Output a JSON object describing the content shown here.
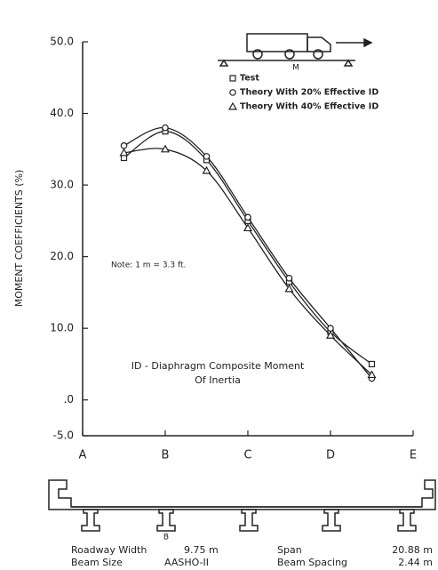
{
  "chart_data": {
    "type": "line",
    "y_label": "MOMENT COEFFICIENTS (%)",
    "x": [
      0.5,
      1,
      1.5,
      2,
      2.5,
      3,
      3.5
    ],
    "xlim": [
      0,
      4
    ],
    "xticks": [
      {
        "value": 0,
        "label": "A"
      },
      {
        "value": 1,
        "label": "B"
      },
      {
        "value": 2,
        "label": "C"
      },
      {
        "value": 3,
        "label": "D"
      },
      {
        "value": 4,
        "label": "E"
      }
    ],
    "ylim": [
      -5,
      50
    ],
    "yticks": [
      {
        "value": 50,
        "label": "50.0"
      },
      {
        "value": 40,
        "label": "40.0"
      },
      {
        "value": 30,
        "label": "30.0"
      },
      {
        "value": 20,
        "label": "20.0"
      },
      {
        "value": 10,
        "label": "10.0"
      },
      {
        "value": 0,
        "label": ".0"
      },
      {
        "value": -5,
        "label": "-5.0"
      }
    ],
    "series": [
      {
        "name": "Test",
        "marker": "square",
        "color": "#222",
        "values": [
          33.8,
          37.5,
          33.5,
          25,
          16.5,
          9.5,
          5
        ]
      },
      {
        "name": "Theory With 20% Effective ID",
        "marker": "circle",
        "color": "#222",
        "values": [
          35.5,
          38,
          34,
          25.5,
          17,
          10,
          3
        ]
      },
      {
        "name": "Theory With 40% Effective ID",
        "marker": "triangle",
        "color": "#222",
        "values": [
          34.5,
          35,
          32,
          24,
          15.5,
          9,
          3.5
        ]
      }
    ],
    "annotations": [
      "Note: 1 m = 3.3 ft.",
      "ID - Diaphragm Composite Moment",
      "Of Inertia",
      "M"
    ]
  },
  "section": {
    "beam_label": "B",
    "rows": [
      [
        "Roadway Width",
        "9.75 m",
        "Span",
        "20.88 m"
      ],
      [
        "Beam Size",
        "AASHO-II",
        "Beam Spacing",
        "2.44 m"
      ]
    ]
  }
}
